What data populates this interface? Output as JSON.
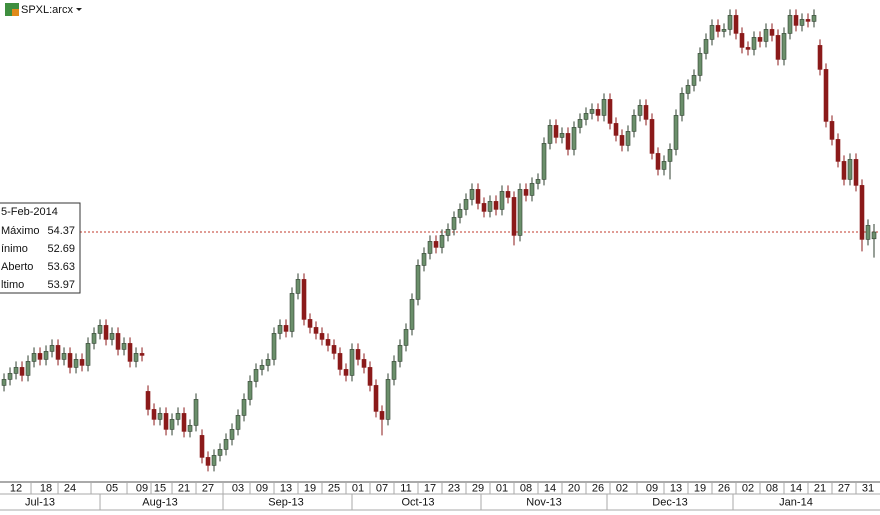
{
  "header": {
    "symbol": "SPXL:arcx"
  },
  "tooltip": {
    "date": "5-Feb-2014",
    "labels": [
      "Máximo",
      "ínimo",
      "Aberto",
      "ltimo"
    ]
  },
  "chart_data": {
    "type": "candlestick",
    "ylim": [
      41.57,
      65.57
    ],
    "xlim": [
      -0.67,
      146
    ],
    "up_color": "#6b8f6b",
    "down_color": "#8b1a1a",
    "last_line_color": "#c0392b",
    "candles": {
      "open": [
        46.3,
        46.6,
        46.9,
        47.2,
        46.8,
        47.5,
        47.9,
        47.6,
        48.0,
        48.3,
        47.6,
        47.9,
        47.2,
        47.6,
        47.3,
        48.4,
        48.9,
        49.3,
        48.6,
        48.9,
        48.1,
        48.4,
        47.5,
        47.9,
        46.0,
        45.1,
        44.6,
        44.9,
        44.1,
        44.6,
        44.9,
        44.0,
        44.3,
        43.8,
        42.7,
        42.3,
        42.8,
        43.1,
        43.6,
        44.1,
        44.8,
        45.6,
        46.5,
        47.1,
        47.3,
        47.6,
        48.9,
        49.3,
        49.0,
        50.9,
        51.6,
        49.6,
        49.2,
        48.9,
        48.6,
        48.3,
        47.9,
        47.1,
        46.8,
        48.1,
        47.6,
        47.2,
        46.3,
        45.0,
        44.6,
        46.6,
        47.5,
        48.3,
        49.1,
        50.6,
        52.3,
        52.9,
        53.5,
        53.2,
        53.8,
        54.1,
        54.7,
        55.1,
        55.6,
        56.1,
        55.4,
        55.0,
        55.5,
        55.1,
        56.0,
        55.7,
        53.8,
        56.1,
        55.8,
        56.4,
        56.6,
        58.4,
        59.3,
        58.7,
        58.9,
        58.1,
        59.2,
        59.6,
        59.9,
        60.1,
        59.8,
        60.6,
        59.4,
        58.8,
        58.3,
        59.0,
        59.8,
        60.3,
        59.6,
        57.9,
        57.1,
        57.5,
        58.1,
        59.8,
        60.9,
        61.3,
        61.8,
        62.9,
        63.6,
        64.3,
        64.0,
        64.1,
        64.8,
        63.9,
        63.2,
        63.1,
        63.7,
        63.5,
        64.1,
        63.8,
        62.6,
        63.9,
        64.8,
        64.3,
        64.6,
        64.5,
        63.3,
        62.1,
        59.5,
        58.6,
        57.5,
        56.6,
        57.6,
        56.3,
        53.6,
        53.63
      ],
      "high": [
        46.9,
        47.2,
        47.5,
        47.5,
        47.8,
        48.2,
        48.2,
        48.3,
        48.6,
        48.6,
        48.2,
        48.2,
        47.9,
        47.9,
        48.7,
        49.2,
        49.6,
        49.6,
        49.2,
        49.2,
        48.7,
        48.7,
        48.2,
        48.2,
        46.3,
        45.4,
        45.2,
        45.2,
        44.9,
        45.2,
        45.2,
        44.6,
        45.9,
        44.1,
        43.0,
        43.1,
        43.4,
        43.9,
        44.4,
        45.1,
        45.9,
        46.8,
        47.4,
        47.6,
        47.9,
        49.2,
        49.6,
        49.6,
        51.2,
        51.9,
        51.9,
        49.9,
        49.5,
        49.2,
        48.9,
        48.6,
        48.2,
        47.4,
        48.4,
        48.4,
        47.9,
        47.5,
        46.6,
        45.3,
        46.9,
        47.8,
        48.6,
        49.4,
        50.9,
        52.6,
        53.2,
        53.8,
        53.8,
        54.1,
        54.4,
        55.0,
        55.4,
        55.9,
        56.4,
        56.4,
        55.7,
        55.8,
        55.8,
        56.3,
        56.3,
        56.0,
        56.4,
        56.4,
        56.7,
        56.9,
        58.7,
        59.6,
        59.6,
        59.2,
        59.2,
        59.5,
        59.9,
        60.2,
        60.4,
        60.4,
        60.9,
        60.9,
        59.7,
        59.1,
        59.3,
        60.1,
        60.6,
        60.6,
        59.9,
        58.2,
        57.8,
        58.4,
        60.1,
        61.2,
        61.6,
        62.1,
        63.2,
        63.9,
        64.6,
        64.6,
        64.4,
        65.1,
        65.1,
        64.2,
        63.5,
        64.0,
        64.0,
        64.4,
        64.4,
        64.1,
        64.2,
        65.1,
        65.1,
        64.9,
        64.9,
        65.1,
        63.6,
        62.4,
        59.8,
        58.9,
        57.8,
        57.9,
        57.9,
        56.6,
        54.6,
        54.37
      ],
      "low": [
        46.0,
        46.3,
        46.6,
        46.5,
        46.5,
        47.2,
        47.3,
        47.3,
        47.7,
        47.3,
        47.3,
        46.9,
        46.9,
        47.0,
        47.0,
        48.1,
        48.6,
        48.3,
        48.3,
        47.8,
        47.8,
        47.2,
        47.2,
        47.5,
        44.8,
        44.3,
        44.3,
        43.8,
        43.8,
        44.3,
        43.7,
        43.7,
        44.0,
        42.4,
        42.0,
        42.0,
        42.5,
        42.8,
        43.3,
        43.8,
        44.5,
        45.3,
        46.2,
        46.8,
        47.0,
        47.3,
        48.6,
        48.7,
        48.7,
        50.6,
        49.3,
        48.9,
        48.6,
        48.3,
        48.0,
        47.6,
        46.8,
        46.5,
        46.5,
        47.3,
        46.9,
        46.0,
        44.7,
        43.8,
        44.3,
        46.3,
        47.2,
        48.0,
        48.8,
        50.3,
        52.0,
        52.6,
        52.9,
        52.9,
        53.5,
        53.8,
        54.4,
        54.8,
        55.3,
        55.1,
        54.7,
        54.7,
        54.8,
        54.8,
        55.4,
        53.3,
        53.5,
        55.5,
        55.5,
        56.1,
        56.3,
        58.1,
        58.4,
        58.4,
        57.8,
        57.8,
        58.9,
        59.3,
        59.6,
        59.5,
        59.5,
        59.1,
        58.5,
        58.0,
        58.0,
        58.7,
        59.5,
        59.3,
        57.6,
        56.8,
        56.8,
        56.6,
        57.8,
        59.5,
        60.6,
        61.0,
        61.5,
        62.6,
        63.3,
        63.7,
        63.7,
        63.8,
        63.6,
        62.9,
        62.8,
        62.8,
        63.2,
        63.2,
        63.5,
        62.3,
        62.3,
        63.6,
        64.0,
        64.0,
        64.2,
        64.2,
        61.8,
        59.2,
        58.3,
        57.2,
        56.3,
        56.3,
        56.0,
        53.0,
        53.3,
        52.69
      ],
      "close": [
        46.6,
        46.9,
        47.2,
        46.8,
        47.5,
        47.9,
        47.6,
        48.0,
        48.3,
        47.6,
        47.9,
        47.2,
        47.6,
        47.3,
        48.4,
        48.9,
        49.3,
        48.6,
        48.9,
        48.1,
        48.4,
        47.5,
        47.9,
        47.8,
        45.1,
        44.6,
        44.9,
        44.1,
        44.6,
        44.9,
        44.0,
        44.3,
        45.6,
        42.7,
        42.3,
        42.8,
        43.1,
        43.6,
        44.1,
        44.8,
        45.6,
        46.5,
        47.1,
        47.3,
        47.6,
        48.9,
        49.3,
        49.0,
        50.9,
        51.6,
        49.6,
        49.2,
        48.9,
        48.6,
        48.3,
        47.9,
        47.1,
        46.8,
        48.1,
        47.6,
        47.2,
        46.3,
        45.0,
        44.6,
        46.6,
        47.5,
        48.3,
        49.1,
        50.6,
        52.3,
        52.9,
        53.5,
        53.2,
        53.8,
        54.1,
        54.7,
        55.1,
        55.6,
        56.1,
        55.4,
        55.0,
        55.5,
        55.1,
        56.0,
        55.7,
        53.8,
        56.1,
        55.8,
        56.4,
        56.6,
        58.4,
        59.3,
        58.7,
        58.9,
        58.1,
        59.2,
        59.6,
        59.9,
        60.1,
        59.8,
        60.6,
        59.4,
        58.8,
        58.3,
        59.0,
        59.8,
        60.3,
        59.6,
        57.9,
        57.1,
        57.5,
        58.1,
        59.8,
        60.9,
        61.3,
        61.8,
        62.9,
        63.6,
        64.3,
        64.0,
        64.1,
        64.8,
        63.9,
        63.2,
        63.1,
        63.7,
        63.5,
        64.1,
        63.8,
        62.6,
        63.9,
        64.8,
        64.3,
        64.6,
        64.5,
        64.8,
        62.1,
        59.5,
        58.6,
        57.5,
        56.6,
        57.6,
        56.3,
        53.6,
        54.3,
        53.97
      ]
    },
    "xticks": [
      {
        "value": 2,
        "label": "12"
      },
      {
        "value": 7,
        "label": "18"
      },
      {
        "value": 11,
        "label": "24"
      },
      {
        "value": 18,
        "label": "05"
      },
      {
        "value": 23,
        "label": "09"
      },
      {
        "value": 26,
        "label": "15"
      },
      {
        "value": 30,
        "label": "21"
      },
      {
        "value": 34,
        "label": "27"
      },
      {
        "value": 39,
        "label": "03"
      },
      {
        "value": 43,
        "label": "09"
      },
      {
        "value": 47,
        "label": "13"
      },
      {
        "value": 51,
        "label": "19"
      },
      {
        "value": 55,
        "label": "25"
      },
      {
        "value": 59,
        "label": "01"
      },
      {
        "value": 63,
        "label": "07"
      },
      {
        "value": 67,
        "label": "11"
      },
      {
        "value": 71,
        "label": "17"
      },
      {
        "value": 75,
        "label": "23"
      },
      {
        "value": 79,
        "label": "29"
      },
      {
        "value": 83,
        "label": "01"
      },
      {
        "value": 87,
        "label": "08"
      },
      {
        "value": 91,
        "label": "14"
      },
      {
        "value": 95,
        "label": "20"
      },
      {
        "value": 99,
        "label": "26"
      },
      {
        "value": 103,
        "label": "02"
      },
      {
        "value": 108,
        "label": "09"
      },
      {
        "value": 112,
        "label": "13"
      },
      {
        "value": 116,
        "label": "19"
      },
      {
        "value": 120,
        "label": "26"
      },
      {
        "value": 124,
        "label": "02"
      },
      {
        "value": 128,
        "label": "08"
      },
      {
        "value": 132,
        "label": "14"
      },
      {
        "value": 136,
        "label": "21"
      },
      {
        "value": 140,
        "label": "27"
      },
      {
        "value": 144,
        "label": "31"
      }
    ],
    "months": [
      {
        "value": 6,
        "label": "Jul-13"
      },
      {
        "value": 26,
        "label": "Aug-13"
      },
      {
        "value": 47,
        "label": "Sep-13"
      },
      {
        "value": 69,
        "label": "Oct-13"
      },
      {
        "value": 90,
        "label": "Nov-13"
      },
      {
        "value": 111,
        "label": "Dec-13"
      },
      {
        "value": 132,
        "label": "Jan-14"
      }
    ]
  }
}
